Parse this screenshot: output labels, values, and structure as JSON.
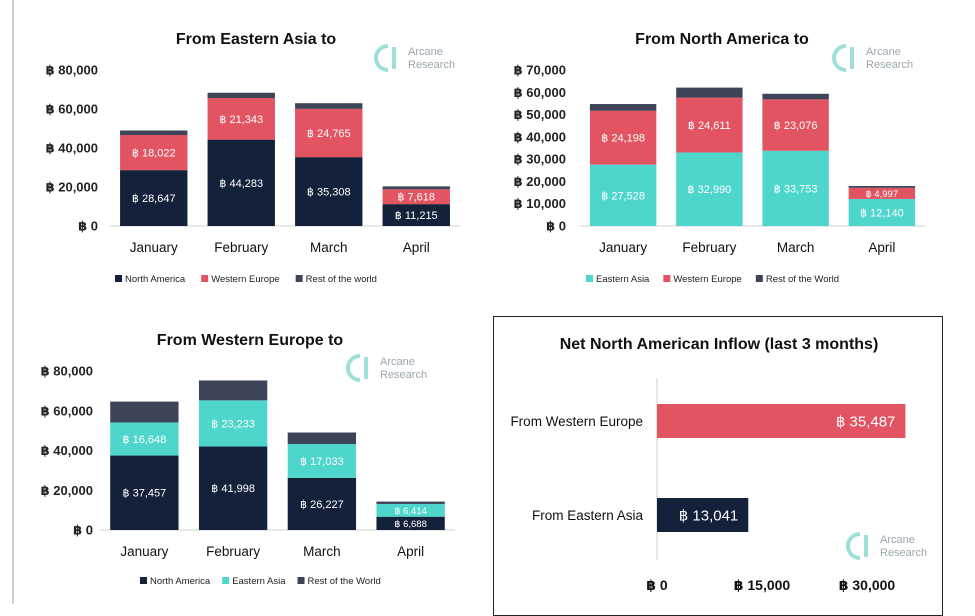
{
  "colors": {
    "navy": "#14213a",
    "red": "#e25461",
    "teal": "#4fd6cc",
    "grey": "#3d4457",
    "logo": "#9fdfda",
    "logo_text": "#9aa6ad"
  },
  "watermark": {
    "line1": "Arcane",
    "line2": "Research"
  },
  "chart_data": [
    {
      "type": "bar",
      "stacked": true,
      "title": "From Eastern Asia to",
      "categories": [
        "January",
        "February",
        "March",
        "April"
      ],
      "ylim": [
        0,
        80000
      ],
      "yticks": [
        0,
        20000,
        40000,
        60000,
        80000
      ],
      "ytick_labels": [
        "฿ 0",
        "฿ 20,000",
        "฿ 40,000",
        "฿ 60,000",
        "฿ 80,000"
      ],
      "series": [
        {
          "name": "North America",
          "color": "#14213a",
          "values": [
            28647,
            44283,
            35308,
            11215
          ],
          "labels": [
            "฿ 28,647",
            "฿ 44,283",
            "฿ 35,308",
            "฿ 11,215"
          ]
        },
        {
          "name": "Western Europe",
          "color": "#e25461",
          "values": [
            18022,
            21343,
            24765,
            7618
          ],
          "labels": [
            "฿ 18,022",
            "฿ 21,343",
            "฿ 24,765",
            "฿ 7,618"
          ]
        },
        {
          "name": "Rest of the world",
          "color": "#3d4457",
          "values": [
            2300,
            2700,
            2900,
            1500
          ],
          "labels": [
            "",
            "",
            "",
            ""
          ]
        }
      ]
    },
    {
      "type": "bar",
      "stacked": true,
      "title": "From North America to",
      "categories": [
        "January",
        "February",
        "March",
        "April"
      ],
      "ylim": [
        0,
        70000
      ],
      "yticks": [
        0,
        10000,
        20000,
        30000,
        40000,
        50000,
        60000,
        70000
      ],
      "ytick_labels": [
        "฿ 0",
        "฿ 10,000",
        "฿ 20,000",
        "฿ 30,000",
        "฿ 40,000",
        "฿ 50,000",
        "฿ 60,000",
        "฿ 70,000"
      ],
      "series": [
        {
          "name": "Eastern Asia",
          "color": "#4fd6cc",
          "values": [
            27528,
            32990,
            33753,
            12140
          ],
          "labels": [
            "฿ 27,528",
            "฿ 32,990",
            "฿ 33,753",
            "฿ 12,140"
          ]
        },
        {
          "name": "Western Europe",
          "color": "#e25461",
          "values": [
            24198,
            24611,
            23076,
            4997
          ],
          "labels": [
            "฿ 24,198",
            "฿ 24,611",
            "฿ 23,076",
            "฿ 4,997"
          ]
        },
        {
          "name": "Rest of the World",
          "color": "#3d4457",
          "values": [
            3000,
            4500,
            2500,
            800
          ],
          "labels": [
            "",
            "",
            "",
            ""
          ]
        }
      ]
    },
    {
      "type": "bar",
      "stacked": true,
      "title": "From Western Europe to",
      "categories": [
        "January",
        "February",
        "March",
        "April"
      ],
      "ylim": [
        0,
        80000
      ],
      "yticks": [
        0,
        20000,
        40000,
        60000,
        80000
      ],
      "ytick_labels": [
        "฿ 0",
        "฿ 20,000",
        "฿ 40,000",
        "฿ 60,000",
        "฿ 80,000"
      ],
      "series": [
        {
          "name": "North America",
          "color": "#14213a",
          "values": [
            37457,
            41998,
            26227,
            6688
          ],
          "labels": [
            "฿ 37,457",
            "฿ 41,998",
            "฿ 26,227",
            "฿ 6,688"
          ]
        },
        {
          "name": "Eastern Asia",
          "color": "#4fd6cc",
          "values": [
            16648,
            23233,
            17033,
            6414
          ],
          "labels": [
            "฿ 16,648",
            "฿ 23,233",
            "฿ 17,033",
            "฿ 6,414"
          ]
        },
        {
          "name": "Rest of the World",
          "color": "#3d4457",
          "values": [
            10500,
            10000,
            5800,
            1200
          ],
          "labels": [
            "",
            "",
            "",
            ""
          ]
        }
      ]
    },
    {
      "type": "bar",
      "orientation": "horizontal",
      "title": "Net North American Inflow (last 3 months)",
      "categories": [
        "From Western Europe",
        "From Eastern Asia"
      ],
      "values": [
        35487,
        13041
      ],
      "value_labels": [
        "฿ 35,487",
        "฿ 13,041"
      ],
      "colors": [
        "#e25461",
        "#14213a"
      ],
      "xlim": [
        0,
        40000
      ],
      "xticks": [
        0,
        15000,
        30000
      ],
      "xtick_labels": [
        "฿ 0",
        "฿ 15,000",
        "฿ 30,000"
      ]
    }
  ]
}
